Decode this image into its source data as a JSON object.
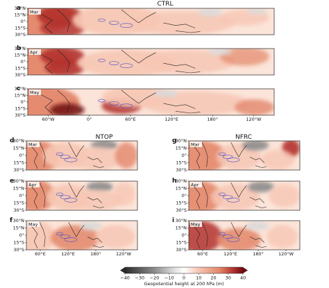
{
  "chart_data": {
    "type": "heatmap",
    "variable_label": "Geopotential height at 200 hPa (m)",
    "colorbar": {
      "ticks": [
        "−40",
        "−30",
        "−20",
        "−10",
        "0",
        "10",
        "20",
        "30",
        "40"
      ],
      "range": [
        -40,
        40
      ],
      "colors": {
        "neg_strong": "#2b2b2b",
        "neg_mid": "#8c8c8c",
        "neg_weak": "#d9d9d9",
        "zero": "#ffffff",
        "pos_weak": "#f7c7b4",
        "pos_mid": "#e3876a",
        "pos_strong": "#b3322d",
        "pos_max": "#6e0c10"
      }
    },
    "lat_ticks": [
      "30°N",
      "15°N",
      "0°",
      "15°S",
      "30°S"
    ],
    "top_group": {
      "title": "CTRL",
      "lon_ticks": [
        "60°W",
        "0°",
        "60°E",
        "120°E",
        "180°",
        "120°W"
      ],
      "panels": [
        {
          "label": "a",
          "month": "Mar"
        },
        {
          "label": "b",
          "month": "Apr"
        },
        {
          "label": "c",
          "month": "May"
        }
      ]
    },
    "left_group": {
      "title": "NTOP",
      "lon_ticks": [
        "60°E",
        "120°E",
        "180°",
        "120°W"
      ],
      "panels": [
        {
          "label": "d",
          "month": "Mar"
        },
        {
          "label": "e",
          "month": "Apr"
        },
        {
          "label": "f",
          "month": "May"
        }
      ]
    },
    "right_group": {
      "title": "NFRC",
      "lon_ticks": [
        "60°E",
        "120°E",
        "180°",
        "120°W"
      ],
      "panels": [
        {
          "label": "g",
          "month": "Mar"
        },
        {
          "label": "h",
          "month": "Apr"
        },
        {
          "label": "i",
          "month": "May"
        }
      ]
    }
  }
}
